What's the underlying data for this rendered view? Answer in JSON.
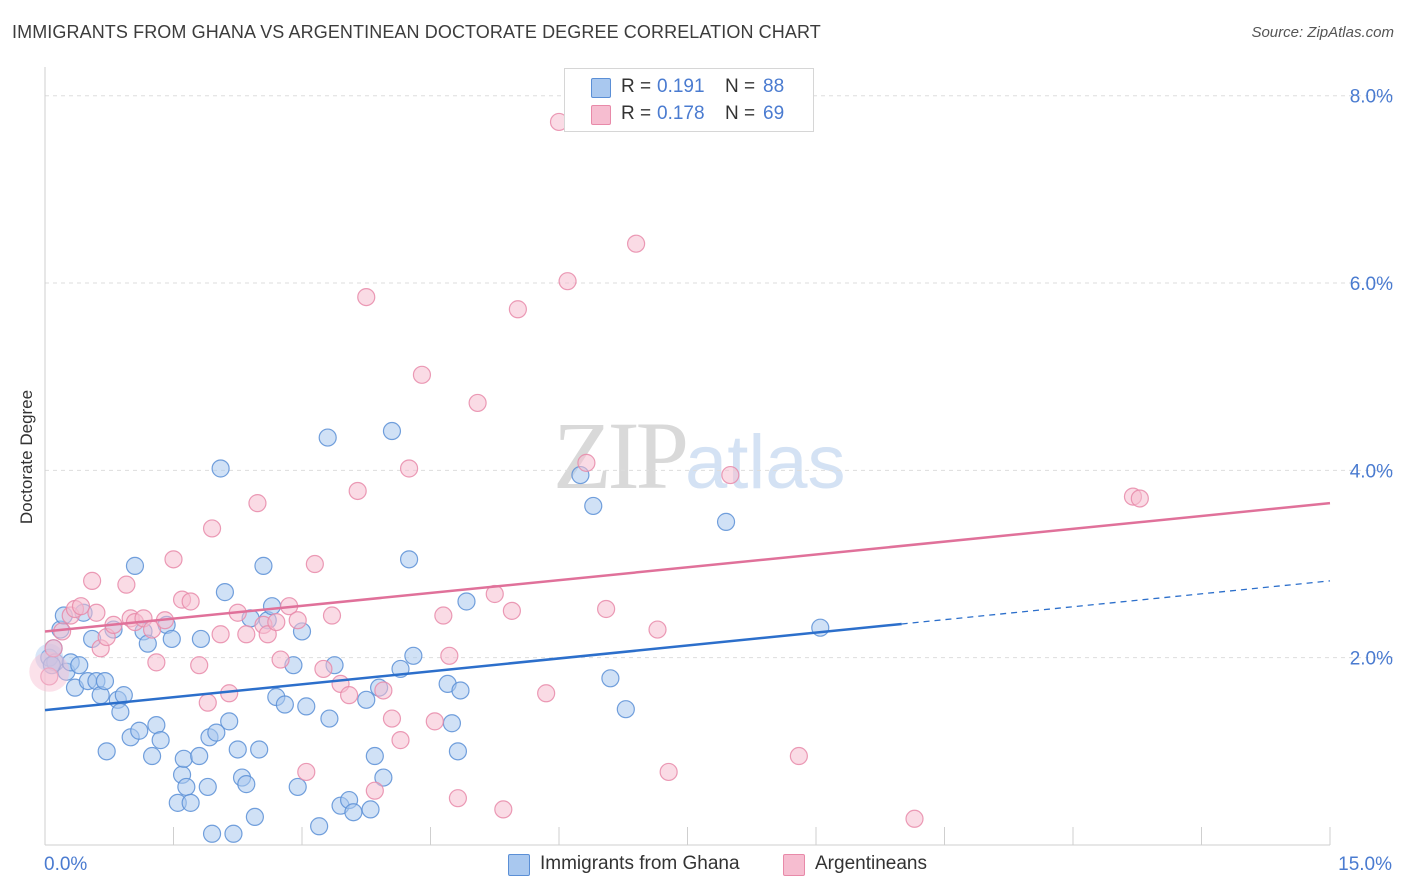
{
  "title": "IMMIGRANTS FROM GHANA VS ARGENTINEAN DOCTORATE DEGREE CORRELATION CHART",
  "source": "Source: ZipAtlas.com",
  "watermark": {
    "zip": "ZIP",
    "atlas": "atlas"
  },
  "legend_top": [
    {
      "r_label": "R =",
      "r_value": "0.191",
      "n_label": "N =",
      "n_value": "88"
    },
    {
      "r_label": "R =",
      "r_value": "0.178",
      "n_label": "N =",
      "n_value": "69"
    }
  ],
  "legend_bottom": [
    "Immigrants from Ghana",
    "Argentineans"
  ],
  "colors": {
    "ghana_fill": "#a9c8ef",
    "ghana_stroke": "#5b8fd6",
    "ghana_line": "#2c6fcb",
    "arg_fill": "#f6bdd0",
    "arg_stroke": "#e88aa9",
    "arg_line": "#e0719a",
    "grid": "#dddddd",
    "tick_label": "#4a7bd0"
  },
  "chart_data": {
    "type": "scatter",
    "title": "IMMIGRANTS FROM GHANA VS ARGENTINEAN DOCTORATE DEGREE CORRELATION CHART",
    "xlabel": "",
    "ylabel": "Doctorate Degree",
    "xlim": [
      0,
      15
    ],
    "ylim": [
      0,
      8.2
    ],
    "x_tick_labels": [
      {
        "value": 0,
        "label": "0.0%"
      },
      {
        "value": 15,
        "label": "15.0%"
      }
    ],
    "y_tick_labels": [
      {
        "value": 2,
        "label": "2.0%"
      },
      {
        "value": 4,
        "label": "4.0%"
      },
      {
        "value": 6,
        "label": "6.0%"
      },
      {
        "value": 8,
        "label": "8.0%"
      }
    ],
    "grid": true,
    "legend_position": "bottom",
    "series": [
      {
        "name": "Immigrants from Ghana",
        "r": 0.191,
        "n": 88,
        "trend": {
          "x0": 0,
          "y0": 1.44,
          "x1": 10.0,
          "y1": 2.36,
          "dash_to_x": 15,
          "dash_to_y": 2.82
        },
        "points": [
          [
            0.05,
            2.0
          ],
          [
            0.1,
            2.1
          ],
          [
            0.12,
            1.95
          ],
          [
            0.18,
            2.3
          ],
          [
            0.22,
            2.45
          ],
          [
            0.25,
            1.85
          ],
          [
            0.3,
            1.95
          ],
          [
            0.35,
            1.68
          ],
          [
            0.4,
            1.92
          ],
          [
            0.45,
            2.48
          ],
          [
            0.5,
            1.75
          ],
          [
            0.55,
            2.2
          ],
          [
            0.6,
            1.75
          ],
          [
            0.65,
            1.6
          ],
          [
            0.7,
            1.75
          ],
          [
            0.72,
            1.0
          ],
          [
            0.8,
            2.3
          ],
          [
            0.85,
            1.55
          ],
          [
            0.88,
            1.42
          ],
          [
            0.92,
            1.6
          ],
          [
            1.0,
            1.15
          ],
          [
            1.05,
            2.98
          ],
          [
            1.1,
            1.22
          ],
          [
            1.15,
            2.28
          ],
          [
            1.2,
            2.15
          ],
          [
            1.25,
            0.95
          ],
          [
            1.3,
            1.28
          ],
          [
            1.35,
            1.12
          ],
          [
            1.42,
            2.35
          ],
          [
            1.48,
            2.2
          ],
          [
            1.55,
            0.45
          ],
          [
            1.6,
            0.75
          ],
          [
            1.62,
            0.92
          ],
          [
            1.65,
            0.62
          ],
          [
            1.7,
            0.45
          ],
          [
            1.8,
            0.95
          ],
          [
            1.82,
            2.2
          ],
          [
            1.9,
            0.62
          ],
          [
            1.92,
            1.15
          ],
          [
            1.95,
            0.12
          ],
          [
            2.0,
            1.2
          ],
          [
            2.05,
            4.02
          ],
          [
            2.1,
            2.7
          ],
          [
            2.15,
            1.32
          ],
          [
            2.2,
            0.12
          ],
          [
            2.25,
            1.02
          ],
          [
            2.3,
            0.72
          ],
          [
            2.35,
            0.65
          ],
          [
            2.45,
            0.3
          ],
          [
            2.5,
            1.02
          ],
          [
            2.55,
            2.98
          ],
          [
            2.6,
            2.4
          ],
          [
            2.65,
            2.55
          ],
          [
            2.7,
            1.58
          ],
          [
            2.8,
            1.5
          ],
          [
            2.9,
            1.92
          ],
          [
            2.95,
            0.62
          ],
          [
            3.0,
            2.28
          ],
          [
            3.05,
            1.48
          ],
          [
            3.2,
            0.2
          ],
          [
            3.3,
            4.35
          ],
          [
            3.32,
            1.35
          ],
          [
            3.38,
            1.92
          ],
          [
            3.45,
            0.42
          ],
          [
            3.55,
            0.48
          ],
          [
            3.6,
            0.35
          ],
          [
            3.75,
            1.55
          ],
          [
            3.8,
            0.38
          ],
          [
            3.85,
            0.95
          ],
          [
            3.9,
            1.68
          ],
          [
            3.95,
            0.72
          ],
          [
            4.05,
            4.42
          ],
          [
            4.15,
            1.88
          ],
          [
            4.25,
            3.05
          ],
          [
            4.3,
            2.02
          ],
          [
            4.7,
            1.72
          ],
          [
            4.75,
            1.3
          ],
          [
            4.82,
            1.0
          ],
          [
            4.85,
            1.65
          ],
          [
            4.92,
            2.6
          ],
          [
            6.25,
            3.95
          ],
          [
            6.4,
            3.62
          ],
          [
            6.6,
            1.78
          ],
          [
            6.78,
            1.45
          ],
          [
            7.95,
            3.45
          ],
          [
            9.05,
            2.32
          ],
          [
            0.08,
            1.92
          ],
          [
            2.4,
            2.42
          ]
        ]
      },
      {
        "name": "Argentineans",
        "r": 0.178,
        "n": 69,
        "trend": {
          "x0": 0,
          "y0": 2.28,
          "x1": 15,
          "y1": 3.65
        },
        "points": [
          [
            0.05,
            1.8
          ],
          [
            0.1,
            2.1
          ],
          [
            0.2,
            2.28
          ],
          [
            0.3,
            2.45
          ],
          [
            0.35,
            2.52
          ],
          [
            0.42,
            2.55
          ],
          [
            0.55,
            2.82
          ],
          [
            0.6,
            2.48
          ],
          [
            0.65,
            2.1
          ],
          [
            0.72,
            2.22
          ],
          [
            0.8,
            2.35
          ],
          [
            0.95,
            2.78
          ],
          [
            1.0,
            2.42
          ],
          [
            1.05,
            2.38
          ],
          [
            1.15,
            2.42
          ],
          [
            1.25,
            2.3
          ],
          [
            1.3,
            1.95
          ],
          [
            1.4,
            2.4
          ],
          [
            1.5,
            3.05
          ],
          [
            1.6,
            2.62
          ],
          [
            1.7,
            2.6
          ],
          [
            1.8,
            1.92
          ],
          [
            1.9,
            1.52
          ],
          [
            1.95,
            3.38
          ],
          [
            2.05,
            2.25
          ],
          [
            2.15,
            1.62
          ],
          [
            2.25,
            2.48
          ],
          [
            2.35,
            2.25
          ],
          [
            2.48,
            3.65
          ],
          [
            2.55,
            2.35
          ],
          [
            2.6,
            2.25
          ],
          [
            2.7,
            2.38
          ],
          [
            2.75,
            1.98
          ],
          [
            2.85,
            2.55
          ],
          [
            2.95,
            2.4
          ],
          [
            3.05,
            0.78
          ],
          [
            3.15,
            3.0
          ],
          [
            3.25,
            1.88
          ],
          [
            3.35,
            2.45
          ],
          [
            3.45,
            1.72
          ],
          [
            3.55,
            1.6
          ],
          [
            3.65,
            3.78
          ],
          [
            3.75,
            5.85
          ],
          [
            3.85,
            0.58
          ],
          [
            3.95,
            1.65
          ],
          [
            4.05,
            1.35
          ],
          [
            4.15,
            1.12
          ],
          [
            4.25,
            4.02
          ],
          [
            4.4,
            5.02
          ],
          [
            4.55,
            1.32
          ],
          [
            4.65,
            2.45
          ],
          [
            4.72,
            2.02
          ],
          [
            4.82,
            0.5
          ],
          [
            5.05,
            4.72
          ],
          [
            5.25,
            2.68
          ],
          [
            5.35,
            0.38
          ],
          [
            5.45,
            2.5
          ],
          [
            5.52,
            5.72
          ],
          [
            5.85,
            1.62
          ],
          [
            6.0,
            7.72
          ],
          [
            6.1,
            6.02
          ],
          [
            6.32,
            4.08
          ],
          [
            6.55,
            2.52
          ],
          [
            6.9,
            6.42
          ],
          [
            7.15,
            2.3
          ],
          [
            7.28,
            0.78
          ],
          [
            8.0,
            3.95
          ],
          [
            8.8,
            0.95
          ],
          [
            10.15,
            0.28
          ]
        ],
        "extra_points": [
          [
            12.7,
            3.72
          ],
          [
            12.78,
            3.7
          ]
        ]
      }
    ]
  }
}
